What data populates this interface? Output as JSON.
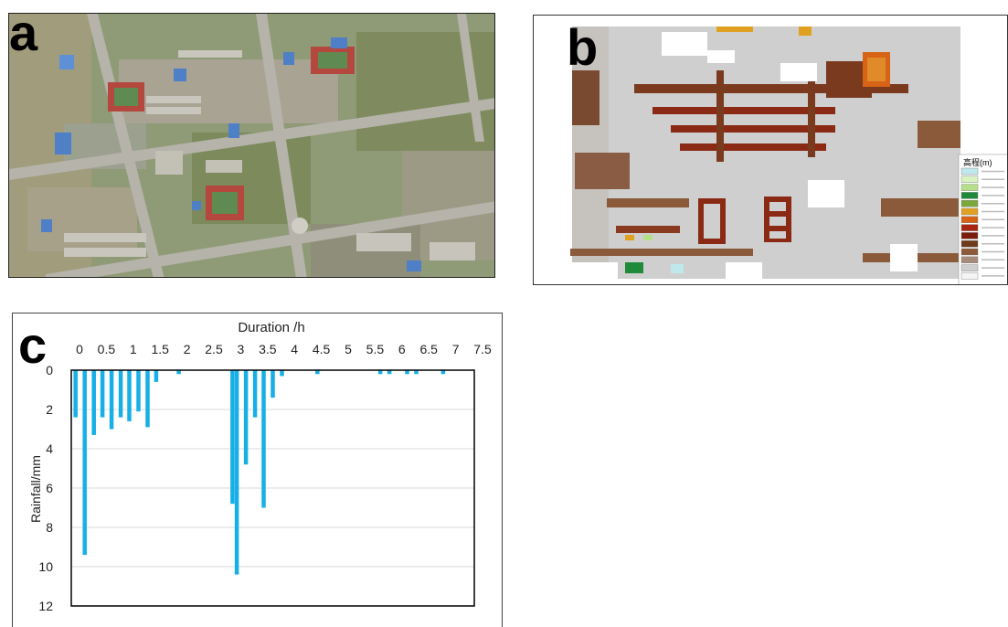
{
  "panels": {
    "a": {
      "letter": "a"
    },
    "b": {
      "letter": "b"
    },
    "c": {
      "letter": "c"
    }
  },
  "legend_b": {
    "title": "高程(m)",
    "swatches": [
      "#bfe8ec",
      "#d9f2c2",
      "#b6df8a",
      "#1f8a3a",
      "#7aa83a",
      "#e0a021",
      "#d76416",
      "#a8250f",
      "#7a1d0d",
      "#6e3a1c",
      "#8c5a3a",
      "#a88a7a",
      "#cfcfcf",
      "#f5f5f5"
    ]
  },
  "chart_data": {
    "type": "bar",
    "xlabel": "Duration /h",
    "ylabel": "Rainfall/mm",
    "xlim": [
      0,
      7.5
    ],
    "ylim": [
      0,
      12
    ],
    "x_ticks": [
      "0",
      "0.5",
      "1",
      "1.5",
      "2",
      "2.5",
      "3",
      "3.5",
      "4",
      "4.5",
      "5",
      "5.5",
      "6",
      "6.5",
      "7",
      "7.5"
    ],
    "y_ticks": [
      "0",
      "2",
      "4",
      "6",
      "8",
      "10",
      "12"
    ],
    "y_axis_inverted": true,
    "x_axis_position": "top",
    "grid": "horizontal",
    "bar_color": "#17b0e6",
    "x": [
      0.08,
      0.25,
      0.42,
      0.58,
      0.75,
      0.92,
      1.08,
      1.25,
      1.42,
      1.58,
      2.0,
      3.0,
      3.08,
      3.25,
      3.42,
      3.58,
      3.75,
      3.92,
      4.58,
      5.75,
      5.92,
      6.25,
      6.42,
      6.92
    ],
    "values": [
      2.4,
      9.4,
      3.3,
      2.4,
      3.0,
      2.4,
      2.6,
      2.1,
      2.9,
      0.6,
      0.2,
      6.8,
      10.4,
      4.8,
      2.4,
      7.0,
      1.4,
      0.3,
      0.2,
      0.2,
      0.2,
      0.2,
      0.2,
      0.2
    ]
  }
}
